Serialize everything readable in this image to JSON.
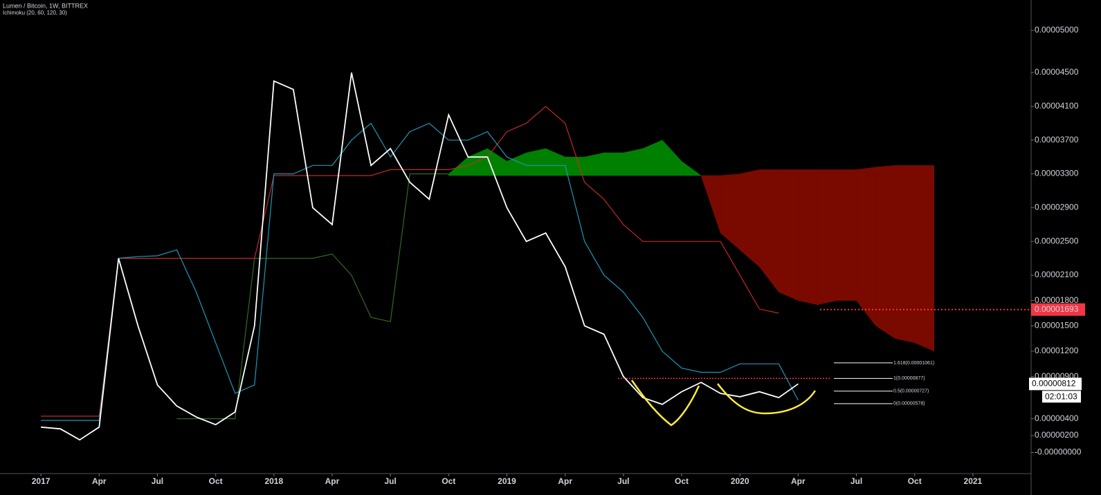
{
  "chart_data": {
    "type": "line",
    "title": "Lumen / Bitcoin, 1W, BITTREX",
    "subtitle": "Ichimoku (20, 60, 120, 30)",
    "x": [
      "2017-01",
      "2017-02",
      "2017-03",
      "2017-04",
      "2017-05",
      "2017-06",
      "2017-07",
      "2017-08",
      "2017-09",
      "2017-10",
      "2017-11",
      "2017-12",
      "2018-01",
      "2018-02",
      "2018-03",
      "2018-04",
      "2018-05",
      "2018-06",
      "2018-07",
      "2018-08",
      "2018-09",
      "2018-10",
      "2018-11",
      "2018-12",
      "2019-01",
      "2019-02",
      "2019-03",
      "2019-04",
      "2019-05",
      "2019-06",
      "2019-07",
      "2019-08",
      "2019-09",
      "2019-10",
      "2019-11",
      "2019-12",
      "2020-01",
      "2020-02",
      "2020-03",
      "2020-04",
      "2020-05",
      "2020-06",
      "2020-07",
      "2020-08",
      "2020-09",
      "2020-10",
      "2020-11",
      "2020-12"
    ],
    "xlim": [
      "2016-11",
      "2021-03"
    ],
    "xticks": [
      {
        "value": "2017-01",
        "label": "2017"
      },
      {
        "value": "2017-04",
        "label": "Apr"
      },
      {
        "value": "2017-07",
        "label": "Jul"
      },
      {
        "value": "2017-10",
        "label": "Oct"
      },
      {
        "value": "2018-01",
        "label": "2018"
      },
      {
        "value": "2018-04",
        "label": "Apr"
      },
      {
        "value": "2018-07",
        "label": "Jul"
      },
      {
        "value": "2018-10",
        "label": "Oct"
      },
      {
        "value": "2019-01",
        "label": "2019"
      },
      {
        "value": "2019-04",
        "label": "Apr"
      },
      {
        "value": "2019-07",
        "label": "Jul"
      },
      {
        "value": "2019-10",
        "label": "Oct"
      },
      {
        "value": "2020-01",
        "label": "2020"
      },
      {
        "value": "2020-04",
        "label": "Apr"
      },
      {
        "value": "2020-07",
        "label": "Jul"
      },
      {
        "value": "2020-10",
        "label": "Oct"
      },
      {
        "value": "2021-01",
        "label": "2021"
      }
    ],
    "ylim": [
      -2.5e-06,
      5.36e-05
    ],
    "yticks": [
      {
        "value": 5e-05,
        "label": "0.00005000"
      },
      {
        "value": 4.5e-05,
        "label": "0.00004500"
      },
      {
        "value": 4.1e-05,
        "label": "0.00004100"
      },
      {
        "value": 3.7e-05,
        "label": "0.00003700"
      },
      {
        "value": 3.3e-05,
        "label": "0.00003300"
      },
      {
        "value": 2.9e-05,
        "label": "0.00002900"
      },
      {
        "value": 2.5e-05,
        "label": "0.00002500"
      },
      {
        "value": 2.1e-05,
        "label": "0.00002100"
      },
      {
        "value": 1.8e-05,
        "label": "0.00001800"
      },
      {
        "value": 1.5e-05,
        "label": "0.00001500"
      },
      {
        "value": 1.2e-05,
        "label": "0.00001200"
      },
      {
        "value": 9e-06,
        "label": "0.00000900"
      },
      {
        "value": 4e-06,
        "label": "0.00000400"
      },
      {
        "value": 2e-06,
        "label": "0.00000200"
      },
      {
        "value": 0,
        "label": "-0.00000000"
      }
    ],
    "cloud": {
      "up_color": "#008000",
      "down_color": "#7a0a00",
      "span_a": [
        null,
        null,
        null,
        null,
        null,
        null,
        null,
        null,
        null,
        null,
        null,
        null,
        null,
        null,
        null,
        null,
        null,
        null,
        null,
        null,
        null,
        3.3e-05,
        3.5e-05,
        3.6e-05,
        3.45e-05,
        3.55e-05,
        3.6e-05,
        3.5e-05,
        3.5e-05,
        3.55e-05,
        3.55e-05,
        3.6e-05,
        3.7e-05,
        3.45e-05,
        3.28e-05,
        2.6e-05,
        2.4e-05,
        2.2e-05,
        1.9e-05,
        1.8e-05,
        1.75e-05,
        1.8e-05,
        1.8e-05,
        1.5e-05,
        1.35e-05,
        1.3e-05,
        1.2e-05,
        null
      ],
      "span_b": [
        null,
        null,
        null,
        null,
        null,
        null,
        null,
        null,
        null,
        null,
        null,
        null,
        null,
        null,
        null,
        null,
        null,
        null,
        null,
        null,
        null,
        3.28e-05,
        3.28e-05,
        3.28e-05,
        3.28e-05,
        3.28e-05,
        3.28e-05,
        3.28e-05,
        3.28e-05,
        3.28e-05,
        3.28e-05,
        3.28e-05,
        3.28e-05,
        3.28e-05,
        3.28e-05,
        3.28e-05,
        3.3e-05,
        3.35e-05,
        3.35e-05,
        3.35e-05,
        3.35e-05,
        3.35e-05,
        3.35e-05,
        3.38e-05,
        3.4e-05,
        3.4e-05,
        3.4e-05,
        null
      ]
    },
    "series": [
      {
        "color": "#2f6b24",
        "values": [
          null,
          null,
          null,
          null,
          null,
          null,
          null,
          4e-06,
          4e-06,
          4e-06,
          4e-06,
          2.3e-05,
          2.3e-05,
          2.3e-05,
          2.3e-05,
          2.35e-05,
          2.1e-05,
          1.6e-05,
          1.55e-05,
          3.3e-05,
          3.3e-05,
          3.3e-05,
          null,
          null,
          null,
          null,
          null,
          null,
          null,
          null,
          null,
          null,
          null,
          null,
          null,
          null,
          null,
          null,
          null,
          null,
          null,
          null,
          null,
          null,
          null,
          null,
          null,
          null
        ]
      },
      {
        "color": "#c62828",
        "values": [
          4.3e-06,
          4.3e-06,
          4.3e-06,
          4.3e-06,
          2.3e-05,
          2.3e-05,
          2.3e-05,
          2.3e-05,
          2.3e-05,
          2.3e-05,
          2.3e-05,
          2.3e-05,
          3.28e-05,
          3.28e-05,
          3.28e-05,
          3.28e-05,
          3.28e-05,
          3.28e-05,
          3.35e-05,
          3.35e-05,
          3.35e-05,
          3.35e-05,
          3.4e-05,
          3.5e-05,
          3.8e-05,
          3.9e-05,
          4.1e-05,
          3.9e-05,
          3.2e-05,
          3e-05,
          2.7e-05,
          2.5e-05,
          2.5e-05,
          2.5e-05,
          2.5e-05,
          2.5e-05,
          2.1e-05,
          1.7e-05,
          1.65e-05,
          null,
          null,
          null,
          null,
          null,
          null,
          null,
          null,
          null
        ]
      },
      {
        "color": "#1b9ab8",
        "values": [
          3.8e-06,
          3.8e-06,
          3.8e-06,
          3.8e-06,
          2.3e-05,
          2.32e-05,
          2.33e-05,
          2.4e-05,
          1.9e-05,
          1.3e-05,
          7e-06,
          8e-06,
          3.3e-05,
          3.3e-05,
          3.4e-05,
          3.4e-05,
          3.7e-05,
          3.9e-05,
          3.5e-05,
          3.8e-05,
          3.9e-05,
          3.7e-05,
          3.7e-05,
          3.8e-05,
          3.5e-05,
          3.4e-05,
          3.4e-05,
          3.4e-05,
          2.5e-05,
          2.1e-05,
          1.9e-05,
          1.6e-05,
          1.2e-05,
          1e-05,
          9.5e-06,
          9.5e-06,
          1.05e-05,
          1.05e-05,
          1.05e-05,
          6.2e-06,
          null,
          null,
          null,
          null,
          null,
          null,
          null,
          null
        ]
      },
      {
        "color": "#ffffff",
        "values": [
          3e-06,
          2.8e-06,
          1.5e-06,
          3e-06,
          2.3e-05,
          1.5e-05,
          8e-06,
          5.5e-06,
          4.2e-06,
          3.3e-06,
          4.8e-06,
          1.5e-05,
          4.4e-05,
          4.3e-05,
          2.9e-05,
          2.7e-05,
          4.5e-05,
          3.4e-05,
          3.6e-05,
          3.2e-05,
          3e-05,
          4e-05,
          3.5e-05,
          3.5e-05,
          2.9e-05,
          2.5e-05,
          2.6e-05,
          2.2e-05,
          1.5e-05,
          1.4e-05,
          9e-06,
          6.5e-06,
          5.7e-06,
          7.2e-06,
          8.3e-06,
          7e-06,
          6.6e-06,
          7.2e-06,
          6.5e-06,
          8.12e-06,
          null,
          null,
          null,
          null,
          null,
          null,
          null,
          null
        ]
      }
    ],
    "alert_line": {
      "value": 1.693e-05,
      "label": "0.00001693",
      "color": "#f23645"
    },
    "last_price": {
      "value": 8.12e-06,
      "label": "0.00000812"
    },
    "countdown": "02:01:03",
    "fib_levels": [
      {
        "value": 1.061e-05,
        "label": "1.618(0.00001061)"
      },
      {
        "value": 8.77e-06,
        "label": "1(0.00000877)"
      },
      {
        "value": 7.27e-06,
        "label": "0.5(0.00000727)"
      },
      {
        "value": 5.78e-06,
        "label": "0(0.00000578)"
      }
    ]
  }
}
